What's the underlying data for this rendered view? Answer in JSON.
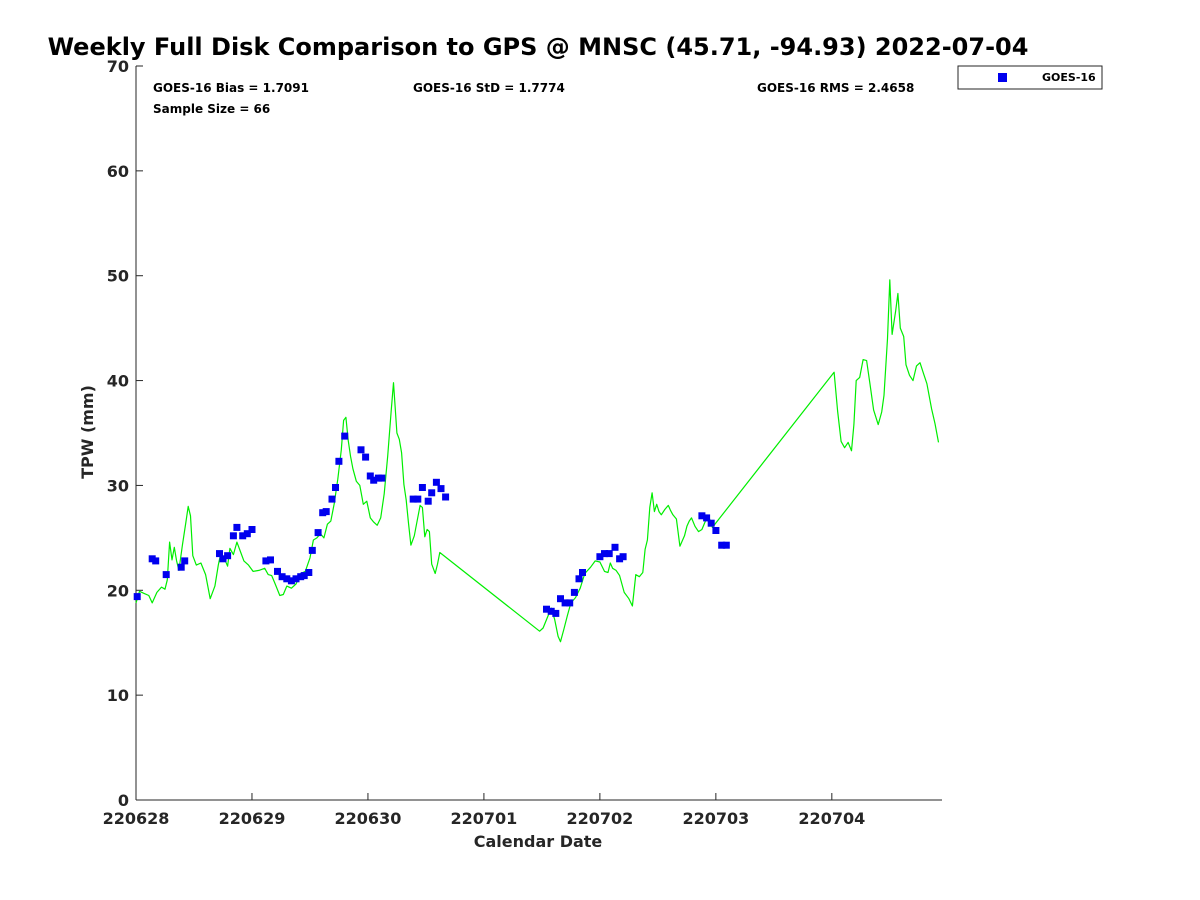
{
  "colors": {
    "goes_marker": "#0000ee",
    "gps_line": "#00ee00",
    "axis": "#262626"
  },
  "chart_data": {
    "type": "scatter",
    "title": "Weekly Full Disk Comparison to GPS @ MNSC (45.71, -94.93) 2022-07-04",
    "xlabel": "Calendar Date",
    "ylabel": "TPW (mm)",
    "xlim": [
      0,
      6.95
    ],
    "ylim": [
      0,
      70
    ],
    "x_unit": "days since 220628",
    "xticks": [
      {
        "value": 0,
        "label": "220628"
      },
      {
        "value": 1,
        "label": "220629"
      },
      {
        "value": 2,
        "label": "220630"
      },
      {
        "value": 3,
        "label": "220701"
      },
      {
        "value": 4,
        "label": "220702"
      },
      {
        "value": 5,
        "label": "220703"
      },
      {
        "value": 6,
        "label": "220704"
      }
    ],
    "yticks": [
      0,
      10,
      20,
      30,
      40,
      50,
      60,
      70
    ],
    "stats": {
      "bias": "GOES-16 Bias = 1.7091",
      "std": "GOES-16 StD = 1.7774",
      "rms": "GOES-16 RMS = 2.4658",
      "sample": "Sample Size = 66"
    },
    "legend": {
      "label": "GOES-16",
      "position": "top-right outside"
    },
    "series": [
      {
        "name": "GPS",
        "type": "line",
        "points": [
          [
            0.0,
            18.8
          ],
          [
            0.03,
            19.9
          ],
          [
            0.07,
            19.7
          ],
          [
            0.11,
            19.5
          ],
          [
            0.14,
            18.8
          ],
          [
            0.18,
            19.8
          ],
          [
            0.22,
            20.3
          ],
          [
            0.25,
            20.1
          ],
          [
            0.27,
            21.0
          ],
          [
            0.29,
            24.6
          ],
          [
            0.31,
            22.9
          ],
          [
            0.33,
            24.1
          ],
          [
            0.35,
            22.8
          ],
          [
            0.37,
            21.9
          ],
          [
            0.4,
            24.3
          ],
          [
            0.43,
            26.5
          ],
          [
            0.45,
            28.0
          ],
          [
            0.47,
            27.1
          ],
          [
            0.49,
            23.3
          ],
          [
            0.52,
            22.4
          ],
          [
            0.56,
            22.6
          ],
          [
            0.6,
            21.5
          ],
          [
            0.64,
            19.2
          ],
          [
            0.68,
            20.4
          ],
          [
            0.71,
            22.4
          ],
          [
            0.73,
            23.5
          ],
          [
            0.76,
            23.1
          ],
          [
            0.79,
            22.3
          ],
          [
            0.81,
            24.0
          ],
          [
            0.84,
            23.4
          ],
          [
            0.87,
            24.6
          ],
          [
            0.9,
            23.7
          ],
          [
            0.93,
            22.8
          ],
          [
            0.97,
            22.4
          ],
          [
            1.01,
            21.8
          ],
          [
            1.06,
            21.9
          ],
          [
            1.11,
            22.1
          ],
          [
            1.14,
            21.5
          ],
          [
            1.17,
            21.4
          ],
          [
            1.2,
            20.6
          ],
          [
            1.24,
            19.5
          ],
          [
            1.27,
            19.6
          ],
          [
            1.3,
            20.4
          ],
          [
            1.34,
            20.2
          ],
          [
            1.38,
            20.6
          ],
          [
            1.42,
            21.6
          ],
          [
            1.46,
            21.8
          ],
          [
            1.5,
            23.1
          ],
          [
            1.53,
            24.8
          ],
          [
            1.56,
            25.0
          ],
          [
            1.59,
            25.4
          ],
          [
            1.62,
            25.0
          ],
          [
            1.65,
            26.3
          ],
          [
            1.68,
            26.6
          ],
          [
            1.71,
            28.3
          ],
          [
            1.74,
            30.6
          ],
          [
            1.77,
            33.4
          ],
          [
            1.79,
            36.2
          ],
          [
            1.81,
            36.5
          ],
          [
            1.83,
            34.3
          ],
          [
            1.85,
            32.8
          ],
          [
            1.87,
            31.6
          ],
          [
            1.9,
            30.4
          ],
          [
            1.93,
            30.0
          ],
          [
            1.96,
            28.2
          ],
          [
            1.99,
            28.5
          ],
          [
            2.02,
            26.9
          ],
          [
            2.05,
            26.5
          ],
          [
            2.08,
            26.2
          ],
          [
            2.11,
            26.9
          ],
          [
            2.14,
            29.2
          ],
          [
            2.17,
            32.8
          ],
          [
            2.2,
            37.0
          ],
          [
            2.22,
            39.8
          ],
          [
            2.25,
            35.0
          ],
          [
            2.27,
            34.4
          ],
          [
            2.29,
            33.1
          ],
          [
            2.31,
            30.1
          ],
          [
            2.33,
            28.6
          ],
          [
            2.35,
            26.4
          ],
          [
            2.37,
            24.3
          ],
          [
            2.4,
            25.2
          ],
          [
            2.42,
            26.4
          ],
          [
            2.45,
            28.1
          ],
          [
            2.47,
            27.9
          ],
          [
            2.49,
            25.1
          ],
          [
            2.51,
            25.8
          ],
          [
            2.53,
            25.6
          ],
          [
            2.55,
            22.5
          ],
          [
            2.58,
            21.6
          ],
          [
            2.6,
            22.5
          ],
          [
            2.62,
            23.6
          ],
          [
            3.48,
            16.1
          ],
          [
            3.51,
            16.4
          ],
          [
            3.54,
            17.2
          ],
          [
            3.58,
            18.3
          ],
          [
            3.61,
            17.2
          ],
          [
            3.64,
            15.6
          ],
          [
            3.66,
            15.1
          ],
          [
            3.69,
            16.3
          ],
          [
            3.72,
            17.6
          ],
          [
            3.75,
            18.8
          ],
          [
            3.79,
            19.3
          ],
          [
            3.83,
            20.2
          ],
          [
            3.87,
            21.6
          ],
          [
            3.92,
            22.2
          ],
          [
            3.96,
            22.8
          ],
          [
            4.0,
            22.7
          ],
          [
            4.04,
            21.8
          ],
          [
            4.07,
            21.7
          ],
          [
            4.09,
            22.6
          ],
          [
            4.11,
            22.1
          ],
          [
            4.14,
            21.9
          ],
          [
            4.17,
            21.4
          ],
          [
            4.21,
            19.8
          ],
          [
            4.25,
            19.2
          ],
          [
            4.28,
            18.5
          ],
          [
            4.31,
            21.5
          ],
          [
            4.34,
            21.3
          ],
          [
            4.37,
            21.7
          ],
          [
            4.39,
            23.9
          ],
          [
            4.41,
            24.8
          ],
          [
            4.43,
            27.9
          ],
          [
            4.45,
            29.3
          ],
          [
            4.47,
            27.5
          ],
          [
            4.49,
            28.2
          ],
          [
            4.51,
            27.5
          ],
          [
            4.53,
            27.2
          ],
          [
            4.56,
            27.7
          ],
          [
            4.59,
            28.1
          ],
          [
            4.61,
            27.6
          ],
          [
            4.63,
            27.2
          ],
          [
            4.66,
            26.8
          ],
          [
            4.69,
            24.2
          ],
          [
            4.71,
            24.7
          ],
          [
            4.73,
            25.2
          ],
          [
            4.75,
            26.1
          ],
          [
            4.77,
            26.6
          ],
          [
            4.79,
            26.9
          ],
          [
            4.82,
            26.1
          ],
          [
            4.85,
            25.6
          ],
          [
            4.88,
            25.8
          ],
          [
            4.91,
            26.6
          ],
          [
            4.94,
            27.0
          ],
          [
            4.97,
            26.0
          ],
          [
            6.02,
            40.8
          ],
          [
            6.05,
            37.1
          ],
          [
            6.08,
            34.2
          ],
          [
            6.11,
            33.6
          ],
          [
            6.14,
            34.1
          ],
          [
            6.17,
            33.3
          ],
          [
            6.19,
            35.8
          ],
          [
            6.21,
            40.0
          ],
          [
            6.24,
            40.3
          ],
          [
            6.27,
            42.0
          ],
          [
            6.3,
            41.9
          ],
          [
            6.33,
            39.6
          ],
          [
            6.36,
            37.2
          ],
          [
            6.4,
            35.8
          ],
          [
            6.43,
            37.0
          ],
          [
            6.45,
            38.6
          ],
          [
            6.48,
            44.0
          ],
          [
            6.5,
            49.6
          ],
          [
            6.52,
            44.4
          ],
          [
            6.55,
            46.6
          ],
          [
            6.57,
            48.3
          ],
          [
            6.59,
            45.0
          ],
          [
            6.62,
            44.2
          ],
          [
            6.64,
            41.5
          ],
          [
            6.67,
            40.5
          ],
          [
            6.7,
            40.0
          ],
          [
            6.73,
            41.4
          ],
          [
            6.76,
            41.7
          ],
          [
            6.79,
            40.7
          ],
          [
            6.82,
            39.7
          ],
          [
            6.86,
            37.3
          ],
          [
            6.89,
            35.9
          ],
          [
            6.92,
            34.1
          ]
        ]
      },
      {
        "name": "GOES-16",
        "type": "scatter",
        "points": [
          [
            0.01,
            19.4
          ],
          [
            0.14,
            23.0
          ],
          [
            0.17,
            22.8
          ],
          [
            0.26,
            21.5
          ],
          [
            0.39,
            22.2
          ],
          [
            0.42,
            22.8
          ],
          [
            0.72,
            23.5
          ],
          [
            0.75,
            23.0
          ],
          [
            0.79,
            23.3
          ],
          [
            0.84,
            25.2
          ],
          [
            0.87,
            26.0
          ],
          [
            0.92,
            25.2
          ],
          [
            0.96,
            25.4
          ],
          [
            1.0,
            25.8
          ],
          [
            1.12,
            22.8
          ],
          [
            1.16,
            22.9
          ],
          [
            1.22,
            21.8
          ],
          [
            1.26,
            21.3
          ],
          [
            1.3,
            21.1
          ],
          [
            1.34,
            20.9
          ],
          [
            1.38,
            21.1
          ],
          [
            1.42,
            21.3
          ],
          [
            1.45,
            21.4
          ],
          [
            1.49,
            21.7
          ],
          [
            1.52,
            23.8
          ],
          [
            1.57,
            25.5
          ],
          [
            1.61,
            27.4
          ],
          [
            1.64,
            27.5
          ],
          [
            1.69,
            28.7
          ],
          [
            1.72,
            29.8
          ],
          [
            1.75,
            32.3
          ],
          [
            1.8,
            34.7
          ],
          [
            1.94,
            33.4
          ],
          [
            1.98,
            32.7
          ],
          [
            2.02,
            30.9
          ],
          [
            2.05,
            30.5
          ],
          [
            2.09,
            30.7
          ],
          [
            2.12,
            30.7
          ],
          [
            2.39,
            28.7
          ],
          [
            2.43,
            28.7
          ],
          [
            2.47,
            29.8
          ],
          [
            2.52,
            28.5
          ],
          [
            2.55,
            29.3
          ],
          [
            2.59,
            30.3
          ],
          [
            2.63,
            29.7
          ],
          [
            2.67,
            28.9
          ],
          [
            3.54,
            18.2
          ],
          [
            3.58,
            18.0
          ],
          [
            3.62,
            17.8
          ],
          [
            3.66,
            19.2
          ],
          [
            3.7,
            18.8
          ],
          [
            3.74,
            18.8
          ],
          [
            3.78,
            19.8
          ],
          [
            3.82,
            21.1
          ],
          [
            3.85,
            21.7
          ],
          [
            4.0,
            23.2
          ],
          [
            4.04,
            23.5
          ],
          [
            4.08,
            23.5
          ],
          [
            4.13,
            24.1
          ],
          [
            4.17,
            23.0
          ],
          [
            4.2,
            23.2
          ],
          [
            4.88,
            27.1
          ],
          [
            4.92,
            26.9
          ],
          [
            4.96,
            26.4
          ],
          [
            5.0,
            25.7
          ],
          [
            5.05,
            24.3
          ],
          [
            5.09,
            24.3
          ]
        ]
      }
    ]
  }
}
